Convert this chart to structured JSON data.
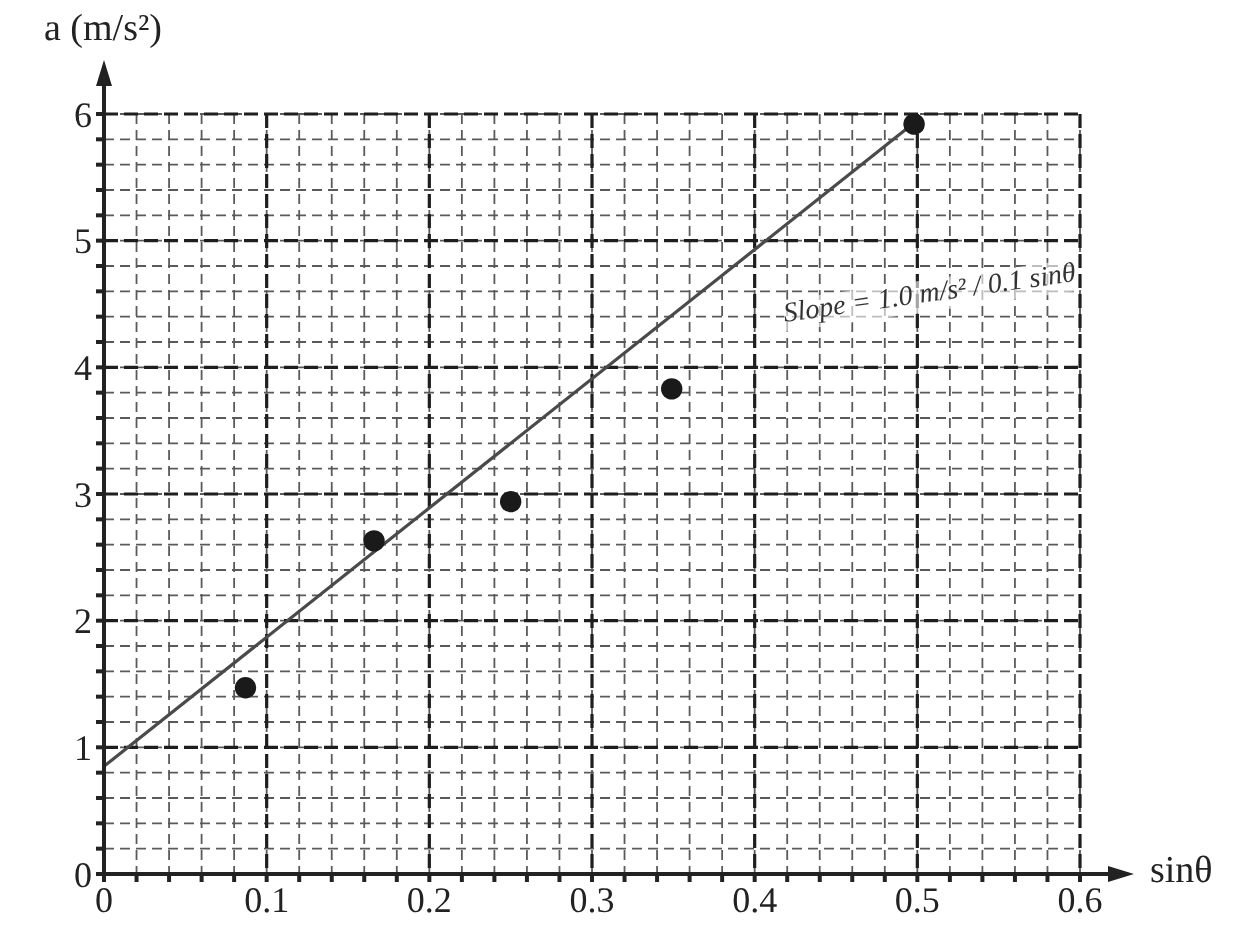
{
  "chart_data": {
    "type": "scatter",
    "xlabel": "sinθ",
    "ylabel": "a (m/s²)",
    "annotations": [
      "Slope = 1.0 m/s² / 0.1 sinθ"
    ],
    "xlim": [
      0,
      0.6
    ],
    "ylim": [
      0,
      6
    ],
    "xticks": [
      0,
      {
        "value": 0.02,
        "label": null
      },
      {
        "value": 0.04,
        "label": null
      },
      {
        "value": 0.06,
        "label": null
      },
      {
        "value": 0.08,
        "label": null
      },
      0.1,
      {
        "value": 0.12,
        "label": null
      },
      {
        "value": 0.14,
        "label": null
      },
      {
        "value": 0.16,
        "label": null
      },
      {
        "value": 0.18,
        "label": null
      },
      0.2,
      {
        "value": 0.22,
        "label": null
      },
      {
        "value": 0.24,
        "label": null
      },
      {
        "value": 0.26,
        "label": null
      },
      {
        "value": 0.28,
        "label": null
      },
      0.3,
      {
        "value": 0.32,
        "label": null
      },
      {
        "value": 0.34,
        "label": null
      },
      {
        "value": 0.36,
        "label": null
      },
      {
        "value": 0.38,
        "label": null
      },
      0.4,
      {
        "value": 0.42,
        "label": null
      },
      {
        "value": 0.44,
        "label": null
      },
      {
        "value": 0.46,
        "label": null
      },
      {
        "value": 0.48,
        "label": null
      },
      0.5,
      {
        "value": 0.52,
        "label": null
      },
      {
        "value": 0.54,
        "label": null
      },
      {
        "value": 0.56,
        "label": null
      },
      {
        "value": 0.58,
        "label": null
      },
      0.6
    ],
    "yticks": [
      0,
      {
        "value": 0.2,
        "label": null
      },
      {
        "value": 0.4,
        "label": null
      },
      {
        "value": 0.6,
        "label": null
      },
      {
        "value": 0.8,
        "label": null
      },
      1,
      {
        "value": 1.2,
        "label": null
      },
      {
        "value": 1.4,
        "label": null
      },
      {
        "value": 1.6,
        "label": null
      },
      {
        "value": 1.8,
        "label": null
      },
      2,
      {
        "value": 2.2,
        "label": null
      },
      {
        "value": 2.4,
        "label": null
      },
      {
        "value": 2.6,
        "label": null
      },
      {
        "value": 2.8,
        "label": null
      },
      3,
      {
        "value": 3.2,
        "label": null
      },
      {
        "value": 3.4,
        "label": null
      },
      {
        "value": 3.6,
        "label": null
      },
      {
        "value": 3.8,
        "label": null
      },
      4,
      {
        "value": 4.2,
        "label": null
      },
      {
        "value": 4.4,
        "label": null
      },
      {
        "value": 4.6,
        "label": null
      },
      {
        "value": 4.8,
        "label": null
      },
      5,
      {
        "value": 5.2,
        "label": null
      },
      {
        "value": 5.4,
        "label": null
      },
      {
        "value": 5.6,
        "label": null
      },
      {
        "value": 5.8,
        "label": null
      },
      6
    ],
    "grid": true,
    "series": [
      {
        "color": "#1a1a1a",
        "marker": "circle",
        "x": [
          0.087,
          0.166,
          0.25,
          0.349,
          0.498
        ],
        "values": [
          1.47,
          2.63,
          2.94,
          3.83,
          5.92
        ]
      },
      {
        "type": "line",
        "color": "#4a4a4a",
        "x": [
          0,
          0.5
        ],
        "values": [
          0.85,
          5.95
        ]
      }
    ]
  }
}
